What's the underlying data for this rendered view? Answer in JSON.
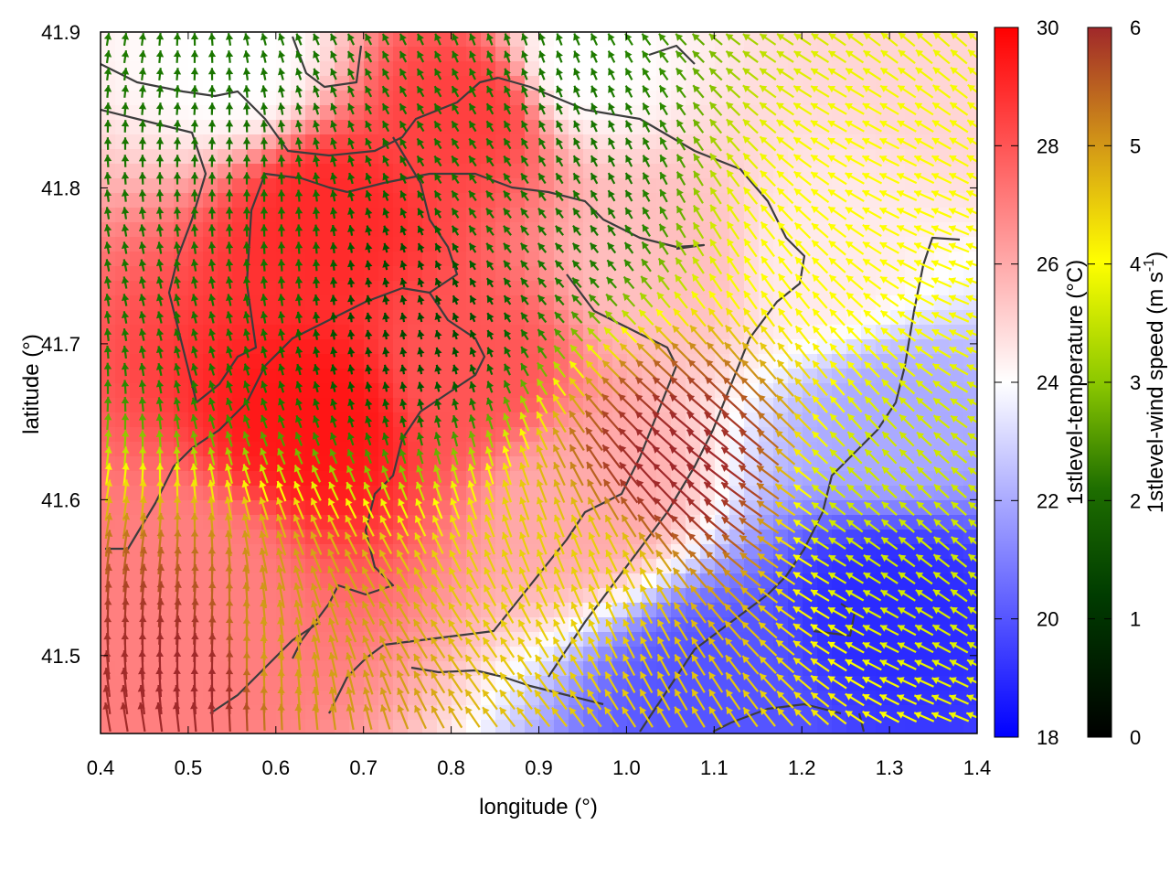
{
  "chart_data": {
    "type": "heatmap",
    "title": "",
    "xlabel": "longitude (°)",
    "ylabel": "latitude (°)",
    "xlim": [
      0.4,
      1.4
    ],
    "ylim": [
      41.45,
      41.9
    ],
    "x_ticks": [
      "0.4",
      "0.5",
      "0.6",
      "0.7",
      "0.8",
      "0.9",
      "1.0",
      "1.1",
      "1.2",
      "1.3",
      "1.4"
    ],
    "y_ticks": [
      "41.5",
      "41.6",
      "41.7",
      "41.8",
      "41.9"
    ],
    "temperature_colorbar": {
      "label": "1stlevel-temperature (°C)",
      "range": [
        18,
        30
      ],
      "ticks": [
        "18",
        "20",
        "22",
        "24",
        "26",
        "28",
        "30"
      ],
      "colors": [
        "#0000ff",
        "#ffffff",
        "#ff0000"
      ]
    },
    "wind_colorbar": {
      "label_main": "1stlevel-wind speed (m s",
      "label_sup": "-1",
      "label_end": ")",
      "range": [
        0,
        6
      ],
      "ticks": [
        "0",
        "1",
        "2",
        "3",
        "4",
        "5",
        "6"
      ],
      "colors": [
        "#000000",
        "#005a00",
        "#2e8b00",
        "#9acd00",
        "#ffff00",
        "#d4a017",
        "#a0282a"
      ]
    },
    "temperature_field_centers": [
      {
        "lon": 0.65,
        "lat": 41.65,
        "temp": 29.5
      },
      {
        "lon": 0.66,
        "lat": 41.78,
        "temp": 29
      },
      {
        "lon": 0.82,
        "lat": 41.85,
        "temp": 28.5
      },
      {
        "lon": 0.82,
        "lat": 41.68,
        "temp": 28
      },
      {
        "lon": 0.5,
        "lat": 41.55,
        "temp": 27
      },
      {
        "lon": 0.95,
        "lat": 41.6,
        "temp": 26
      },
      {
        "lon": 1.05,
        "lat": 41.75,
        "temp": 25.5
      },
      {
        "lon": 1.22,
        "lat": 41.75,
        "temp": 24.5
      },
      {
        "lon": 1.3,
        "lat": 41.65,
        "temp": 22
      },
      {
        "lon": 1.3,
        "lat": 41.53,
        "temp": 19
      },
      {
        "lon": 1.1,
        "lat": 41.48,
        "temp": 20
      },
      {
        "lon": 0.55,
        "lat": 41.88,
        "temp": 24
      },
      {
        "lon": 0.95,
        "lat": 41.88,
        "temp": 24
      },
      {
        "lon": 1.38,
        "lat": 41.88,
        "temp": 25
      }
    ],
    "wind_speed_centers": [
      {
        "lon": 1.06,
        "lat": 41.62,
        "speed": 6
      },
      {
        "lon": 0.5,
        "lat": 41.48,
        "speed": 6
      },
      {
        "lon": 0.62,
        "lat": 41.5,
        "speed": 5
      },
      {
        "lon": 0.95,
        "lat": 41.55,
        "speed": 4.5
      },
      {
        "lon": 1.25,
        "lat": 41.77,
        "speed": 4
      },
      {
        "lon": 1.3,
        "lat": 41.6,
        "speed": 3.5
      },
      {
        "lon": 0.55,
        "lat": 41.75,
        "speed": 1.5
      },
      {
        "lon": 0.75,
        "lat": 41.72,
        "speed": 0.8
      },
      {
        "lon": 0.9,
        "lat": 41.8,
        "speed": 1.5
      }
    ]
  }
}
